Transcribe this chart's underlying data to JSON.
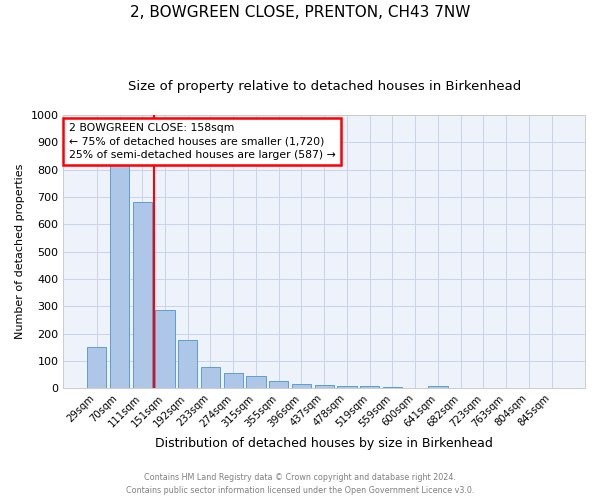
{
  "title1": "2, BOWGREEN CLOSE, PRENTON, CH43 7NW",
  "title2": "Size of property relative to detached houses in Birkenhead",
  "xlabel": "Distribution of detached houses by size in Birkenhead",
  "ylabel": "Number of detached properties",
  "categories": [
    "29sqm",
    "70sqm",
    "111sqm",
    "151sqm",
    "192sqm",
    "233sqm",
    "274sqm",
    "315sqm",
    "355sqm",
    "396sqm",
    "437sqm",
    "478sqm",
    "519sqm",
    "559sqm",
    "600sqm",
    "641sqm",
    "682sqm",
    "723sqm",
    "763sqm",
    "804sqm",
    "845sqm"
  ],
  "values": [
    150,
    820,
    680,
    285,
    175,
    78,
    55,
    43,
    25,
    15,
    10,
    8,
    8,
    5,
    0,
    8,
    0,
    0,
    0,
    0,
    0
  ],
  "bar_color": "#aec6e8",
  "bar_edge_color": "#5a9fd4",
  "red_line_x": 2.5,
  "annotation_line1": "2 BOWGREEN CLOSE: 158sqm",
  "annotation_line2": "← 75% of detached houses are smaller (1,720)",
  "annotation_line3": "25% of semi-detached houses are larger (587) →",
  "ylim": [
    0,
    1000
  ],
  "yticks": [
    0,
    100,
    200,
    300,
    400,
    500,
    600,
    700,
    800,
    900,
    1000
  ],
  "footer1": "Contains HM Land Registry data © Crown copyright and database right 2024.",
  "footer2": "Contains public sector information licensed under the Open Government Licence v3.0.",
  "title1_fontsize": 11,
  "title2_fontsize": 9.5,
  "xlabel_fontsize": 9,
  "ylabel_fontsize": 8,
  "bar_width": 0.85,
  "grid_color": "#c8d4e8",
  "background_color": "#eef2fa"
}
